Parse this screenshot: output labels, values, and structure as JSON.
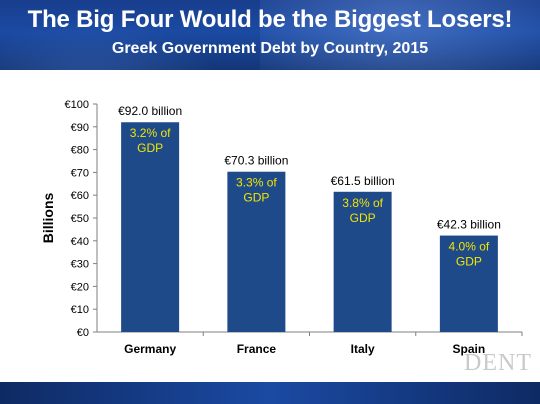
{
  "header": {
    "title": "The Big Four Would be the Biggest Losers!",
    "subtitle": "Greek Government Debt by Country, 2015"
  },
  "logo": {
    "text": "DENT"
  },
  "colors": {
    "bar": "#1f4a8a",
    "bar_label": "#f2e600",
    "header": "#1b4aa3"
  },
  "chart_data": {
    "type": "bar",
    "title": "",
    "xlabel": "",
    "ylabel": "Billions",
    "categories": [
      "Germany",
      "France",
      "Italy",
      "Spain"
    ],
    "values": [
      92.0,
      70.3,
      61.5,
      42.3
    ],
    "value_labels": [
      "€92.0 billion",
      "€70.3 billion",
      "€61.5 billion",
      "€42.3 billion"
    ],
    "gdp_labels": [
      [
        "3.2% of",
        "GDP"
      ],
      [
        "3.3% of",
        "GDP"
      ],
      [
        "3.8% of",
        "GDP"
      ],
      [
        "4.0% of",
        "GDP"
      ]
    ],
    "yticks": [
      "€0",
      "€10",
      "€20",
      "€30",
      "€40",
      "€50",
      "€60",
      "€70",
      "€80",
      "€90",
      "€100"
    ],
    "ylim": [
      0,
      100
    ],
    "grid": false,
    "legend": "none"
  }
}
